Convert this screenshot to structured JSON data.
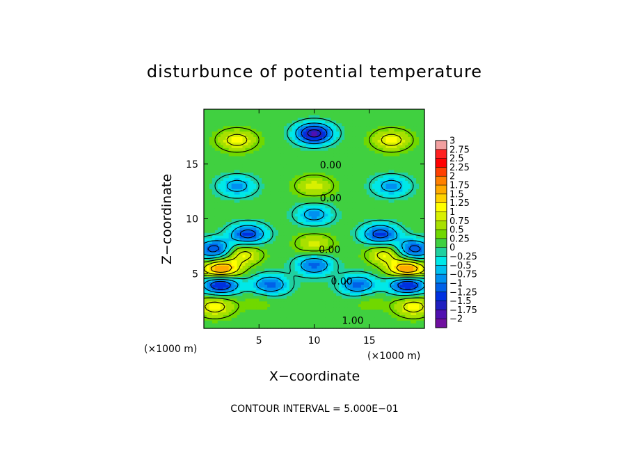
{
  "chart_data": {
    "type": "contour",
    "title": "disturbunce of potential temperature",
    "xlabel": "X−coordinate",
    "ylabel": "Z−coordinate",
    "x_unit": "(×1000 m)",
    "y_unit": "(×1000 m)",
    "xlim": [
      0,
      20
    ],
    "ylim": [
      0,
      20
    ],
    "x_ticks": [
      "5",
      "10",
      "15"
    ],
    "y_ticks": [
      "5",
      "10",
      "15"
    ],
    "colorbar": {
      "levels": [
        "3",
        "2.75",
        "2.5",
        "2.25",
        "2",
        "1.75",
        "1.5",
        "1.25",
        "1",
        "0.75",
        "0.5",
        "0.25",
        "0",
        "−0.25",
        "−0.5",
        "−0.75",
        "−1",
        "−1.25",
        "−1.5",
        "−1.75",
        "−2"
      ],
      "colors": [
        "#f2a0a0",
        "#ff2020",
        "#ff0000",
        "#ff4000",
        "#ff8000",
        "#ffaa00",
        "#ffd200",
        "#ffff00",
        "#d8f000",
        "#a8e000",
        "#70d800",
        "#40d040",
        "#20d0a0",
        "#00e8e8",
        "#00c0f0",
        "#0090f0",
        "#0060e8",
        "#0030e0",
        "#2020c0",
        "#5010b0",
        "#7010a0"
      ]
    },
    "contour_labels": [
      {
        "text": "0.00",
        "x": 11.5,
        "z": 14.6
      },
      {
        "text": "0.00",
        "x": 11.5,
        "z": 11.6
      },
      {
        "text": "0.00",
        "x": 11.4,
        "z": 6.9
      },
      {
        "text": "0.00",
        "x": 12.5,
        "z": 4.0
      },
      {
        "text": "1.00",
        "x": 13.5,
        "z": 0.4
      }
    ],
    "features": [
      {
        "x": 10.0,
        "z": 17.8,
        "value": -2.0
      },
      {
        "x": 3.0,
        "z": 17.2,
        "value": 1.0
      },
      {
        "x": 17.0,
        "z": 17.2,
        "value": 1.0
      },
      {
        "x": 3.0,
        "z": 13.0,
        "value": -1.0
      },
      {
        "x": 17.0,
        "z": 13.0,
        "value": -1.0
      },
      {
        "x": 10.0,
        "z": 13.0,
        "value": 0.75
      },
      {
        "x": 10.0,
        "z": 10.4,
        "value": -1.0
      },
      {
        "x": 4.0,
        "z": 8.6,
        "value": -1.5
      },
      {
        "x": 16.0,
        "z": 8.6,
        "value": -1.5
      },
      {
        "x": 10.0,
        "z": 7.7,
        "value": 0.75
      },
      {
        "x": 1.0,
        "z": 7.2,
        "value": -1.5
      },
      {
        "x": 19.0,
        "z": 7.2,
        "value": -1.5
      },
      {
        "x": 3.5,
        "z": 6.8,
        "value": 1.0
      },
      {
        "x": 16.5,
        "z": 6.8,
        "value": 1.0
      },
      {
        "x": 10.0,
        "z": 5.8,
        "value": -1.25
      },
      {
        "x": 1.5,
        "z": 5.3,
        "value": 2.0
      },
      {
        "x": 18.5,
        "z": 5.3,
        "value": 2.0
      },
      {
        "x": 1.5,
        "z": 4.1,
        "value": -2.0
      },
      {
        "x": 18.5,
        "z": 4.1,
        "value": -2.0
      },
      {
        "x": 6.0,
        "z": 4.0,
        "value": -1.25
      },
      {
        "x": 14.0,
        "z": 4.0,
        "value": -1.25
      },
      {
        "x": 1.0,
        "z": 2.0,
        "value": 1.0
      },
      {
        "x": 19.0,
        "z": 2.0,
        "value": 1.0
      },
      {
        "x": 5.0,
        "z": 2.5,
        "value": 0.25
      },
      {
        "x": 15.0,
        "z": 2.5,
        "value": 0.25
      }
    ],
    "grid": false
  },
  "footer": "CONTOUR INTERVAL = 5.000E−01"
}
